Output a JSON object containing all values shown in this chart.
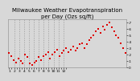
{
  "title": "Milwaukee Weather Evapotranspiration\nper Day (Ozs sq/ft)",
  "bg_color": "#d8d8d8",
  "plot_bg_color": "#d8d8d8",
  "dot_color": "#dd0000",
  "grid_color": "#999999",
  "y_label_color": "#000000",
  "ylim": [
    0.0,
    0.75
  ],
  "yticks": [
    0.0,
    0.1,
    0.2,
    0.3,
    0.4,
    0.5,
    0.6,
    0.7
  ],
  "ytick_labels": [
    "0",
    ".1",
    ".2",
    ".3",
    ".4",
    ".5",
    ".6",
    ".7"
  ],
  "x_labels": [
    "1",
    "",
    "2",
    "",
    "3",
    "",
    "4",
    "",
    "5",
    "",
    "6",
    "",
    "7",
    "",
    "8",
    "",
    "9",
    "",
    "10",
    "",
    "11",
    "",
    "12",
    ""
  ],
  "vline_positions": [
    2,
    4,
    6,
    8,
    10,
    12,
    14,
    16,
    18,
    20,
    22
  ],
  "n_points": 52,
  "data_y": [
    0.22,
    0.18,
    0.12,
    0.08,
    0.14,
    0.1,
    0.06,
    0.2,
    0.16,
    0.06,
    0.04,
    0.08,
    0.1,
    0.16,
    0.12,
    0.18,
    0.2,
    0.24,
    0.14,
    0.2,
    0.24,
    0.28,
    0.18,
    0.22,
    0.26,
    0.3,
    0.24,
    0.28,
    0.32,
    0.26,
    0.3,
    0.36,
    0.38,
    0.3,
    0.36,
    0.42,
    0.46,
    0.5,
    0.56,
    0.6,
    0.54,
    0.64,
    0.58,
    0.66,
    0.7,
    0.62,
    0.56,
    0.5,
    0.46,
    0.38,
    0.3,
    0.22
  ],
  "title_fontsize": 5.0,
  "tick_fontsize": 3.2
}
